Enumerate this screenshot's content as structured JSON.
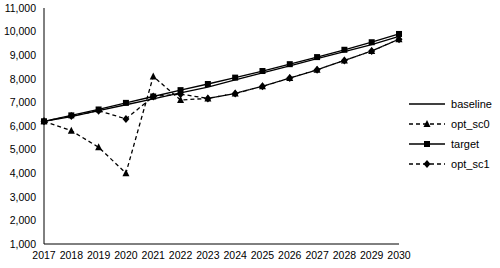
{
  "chart_data": {
    "type": "line",
    "categories": [
      "2017",
      "2018",
      "2019",
      "2020",
      "2021",
      "2022",
      "2023",
      "2024",
      "2025",
      "2026",
      "2027",
      "2028",
      "2029",
      "2030"
    ],
    "series": [
      {
        "name": "baseline",
        "color": "#000000",
        "marker": "none",
        "line_style": "solid",
        "values": [
          6200,
          6400,
          6650,
          6900,
          7150,
          7400,
          7650,
          7950,
          8250,
          8550,
          8850,
          9150,
          9450,
          9800
        ]
      },
      {
        "name": "opt_sc0",
        "color": "#000000",
        "marker": "triangle",
        "line_style": "dashed",
        "values": [
          6200,
          5800,
          5100,
          4000,
          8100,
          7100,
          7170,
          7380,
          7680,
          8030,
          8380,
          8780,
          9180,
          9680
        ]
      },
      {
        "name": "target",
        "color": "#000000",
        "marker": "square",
        "line_style": "solid",
        "values": [
          6200,
          6450,
          6700,
          6980,
          7250,
          7520,
          7780,
          8050,
          8330,
          8620,
          8920,
          9230,
          9550,
          9900
        ]
      },
      {
        "name": "opt_sc1",
        "color": "#000000",
        "marker": "diamond",
        "line_style": "dashed",
        "values": [
          6200,
          6420,
          6650,
          6300,
          7250,
          7350,
          7170,
          7380,
          7680,
          8030,
          8380,
          8780,
          9180,
          9680
        ]
      }
    ],
    "ylim": [
      1000,
      11000
    ],
    "yticks": [
      {
        "value": 1000,
        "label": "1,000"
      },
      {
        "value": 2000,
        "label": "2,000"
      },
      {
        "value": 3000,
        "label": "3,000"
      },
      {
        "value": 4000,
        "label": "4,000"
      },
      {
        "value": 5000,
        "label": "5,000"
      },
      {
        "value": 6000,
        "label": "6,000"
      },
      {
        "value": 7000,
        "label": "7,000"
      },
      {
        "value": 8000,
        "label": "8,000"
      },
      {
        "value": 9000,
        "label": "9,000"
      },
      {
        "value": 10000,
        "label": "10,000"
      },
      {
        "value": 11000,
        "label": "11,000"
      }
    ],
    "grid": false,
    "legend": "right"
  }
}
